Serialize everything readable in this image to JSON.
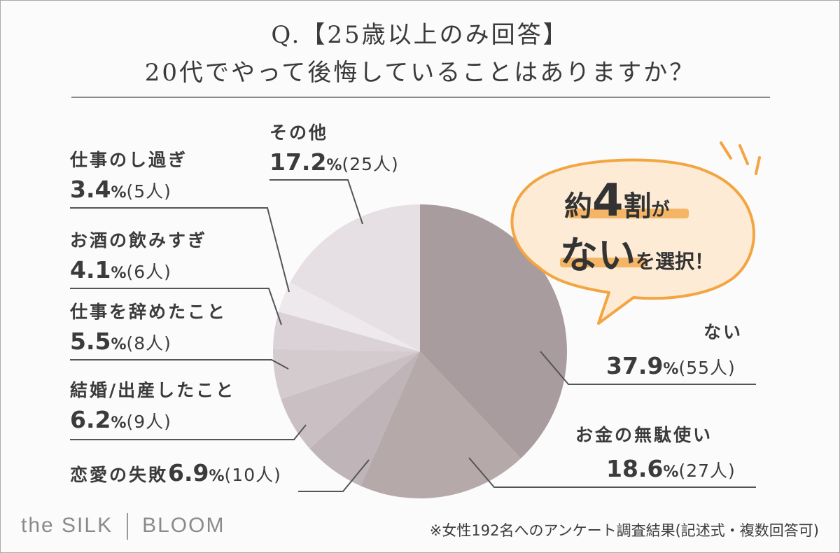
{
  "title": {
    "line1": "Q.【25歳以上のみ回答】",
    "line2": "20代でやって後悔していることはありますか？"
  },
  "chart_data": {
    "type": "pie",
    "start": "12 o'clock, clockwise",
    "slices": [
      {
        "label": "ない",
        "percent": 37.9,
        "percent_text": "37.9",
        "count_text": "(55人)",
        "color": "#a99c9f"
      },
      {
        "label": "お金の無駄使い",
        "percent": 18.6,
        "percent_text": "18.6",
        "count_text": "(27人)",
        "color": "#b6a9aa"
      },
      {
        "label": "恋愛の失敗",
        "percent": 6.9,
        "percent_text": "6.9",
        "count_text": "(10人)",
        "color": "#bfb4b7"
      },
      {
        "label": "結婚/出産したこと",
        "percent": 6.2,
        "percent_text": "6.2",
        "count_text": "(9人)",
        "color": "#cac0c3"
      },
      {
        "label": "仕事を辞めたこと",
        "percent": 5.5,
        "percent_text": "5.5",
        "count_text": "(8人)",
        "color": "#d4cbcf"
      },
      {
        "label": "お酒の飲みすぎ",
        "percent": 4.1,
        "percent_text": "4.1",
        "count_text": "(6人)",
        "color": "#dad2d6"
      },
      {
        "label": "仕事のし過ぎ",
        "percent": 3.4,
        "percent_text": "3.4",
        "count_text": "(5人)",
        "color": "#eee9ec"
      },
      {
        "label": "その他",
        "percent": 17.2,
        "percent_text": "17.2",
        "count_text": "(25人)",
        "color": "#e6dfe3"
      }
    ],
    "percent_sign": "%"
  },
  "callout": {
    "part1": "約",
    "number": "4",
    "part2": "割",
    "part3": "が",
    "part4": "ない",
    "part5": "を選択！",
    "fill_color": "#fdebd6",
    "stroke_color": "#f2a541"
  },
  "footer": {
    "brand_left": "the SILK",
    "brand_right": "BLOOM",
    "note": "※女性192名へのアンケート調査結果(記述式・複数回答可)"
  }
}
